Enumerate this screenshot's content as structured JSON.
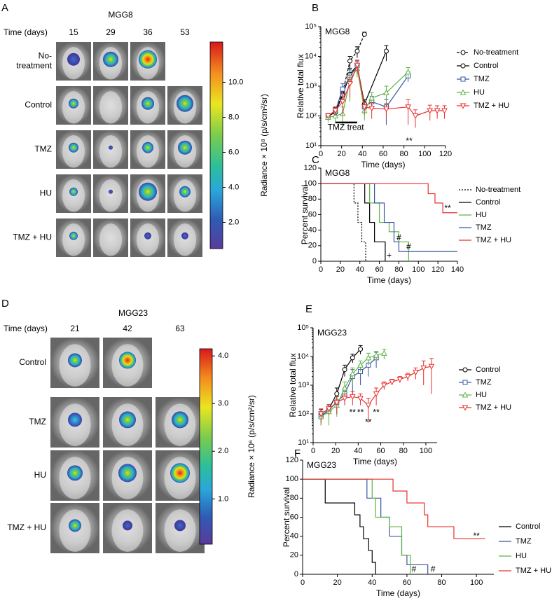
{
  "imaging": [
    {
      "panel": "A",
      "title": "MGG8",
      "time_label": "Time (days)",
      "times": [
        15,
        29,
        36,
        53
      ],
      "rows": [
        "No-treatment",
        "Control",
        "TMZ",
        "HU",
        "TMZ + HU"
      ],
      "colorbar": {
        "label": "Radiance × 10⁸ (p/s/cm²/sr)",
        "lim": [
          0.5,
          12.3
        ],
        "ticks": [
          {
            "value": 2,
            "label": "2.0"
          },
          {
            "value": 4,
            "label": "4.0"
          },
          {
            "value": 6,
            "label": "6.0"
          },
          {
            "value": 8,
            "label": "8.0"
          },
          {
            "value": 10,
            "label": "10.0"
          }
        ]
      }
    },
    {
      "panel": "D",
      "title": "MGG23",
      "time_label": "Time (days)",
      "times": [
        21,
        42,
        63
      ],
      "rows": [
        "Control",
        "TMZ",
        "HU",
        "TMZ + HU"
      ],
      "colorbar": {
        "label": "Radiance × 10⁶ (p/s/cm²/sr)",
        "lim": [
          0.05,
          4.15
        ],
        "ticks": [
          {
            "value": 1,
            "label": "1.0"
          },
          {
            "value": 2,
            "label": "2.0"
          },
          {
            "value": 3,
            "label": "3.0"
          },
          {
            "value": 4,
            "label": "4.0"
          }
        ]
      }
    }
  ],
  "chart_data": [
    {
      "type": "line",
      "panel": "B",
      "label": "MGG8",
      "x_label": "Time (days)",
      "y_label": "Relative total flux",
      "log_y": true,
      "xlim": [
        0,
        120
      ],
      "xticks": [
        0,
        20,
        40,
        60,
        80,
        100,
        120
      ],
      "ylim": [
        10,
        100000
      ],
      "yticks": [
        {
          "value": 10,
          "label": "10¹"
        },
        {
          "value": 100,
          "label": "10²"
        },
        {
          "value": 1000,
          "label": "10³"
        },
        {
          "value": 10000,
          "label": "10⁴"
        },
        {
          "value": 100000,
          "label": "10⁵"
        }
      ],
      "legend": "right",
      "annotations": [
        "TMZ treat",
        "**"
      ],
      "series": [
        {
          "name": "No-treatment",
          "color": "#000000",
          "marker": "circle",
          "dash": "dashed",
          "x": [
            7,
            14,
            21,
            28,
            35,
            42
          ],
          "values": [
            100,
            150,
            600,
            7000,
            15000,
            55000
          ],
          "errors": [
            20,
            40,
            300,
            3000,
            6000,
            10000
          ]
        },
        {
          "name": "Control",
          "color": "#000000",
          "marker": "circle",
          "x": [
            7,
            14,
            21,
            28,
            35,
            42,
            63
          ],
          "values": [
            100,
            130,
            500,
            2500,
            5000,
            250,
            15000
          ],
          "errors": [
            20,
            30,
            200,
            1500,
            2000,
            100,
            8000
          ]
        },
        {
          "name": "TMZ",
          "color": "#3a53a4",
          "marker": "square",
          "x": [
            7,
            14,
            21,
            28,
            35,
            42,
            49,
            63,
            84
          ],
          "values": [
            100,
            150,
            800,
            2000,
            5000,
            200,
            300,
            200,
            2200
          ],
          "errors": [
            20,
            50,
            400,
            1500,
            2000,
            100,
            150,
            150,
            800
          ]
        },
        {
          "name": "HU",
          "color": "#5cb545",
          "marker": "triangle",
          "x": [
            7,
            14,
            21,
            28,
            35,
            42,
            49,
            63,
            84
          ],
          "values": [
            90,
            100,
            120,
            1500,
            4000,
            150,
            400,
            600,
            3000
          ],
          "errors": [
            30,
            40,
            80,
            1200,
            2000,
            80,
            200,
            400,
            1200
          ]
        },
        {
          "name": "TMZ + HU",
          "color": "#e8312e",
          "marker": "triangle-down",
          "x": [
            7,
            14,
            21,
            28,
            35,
            42,
            49,
            63,
            84,
            91,
            105,
            112,
            119
          ],
          "values": [
            100,
            150,
            300,
            1200,
            5000,
            200,
            180,
            170,
            200,
            100,
            150,
            150,
            150
          ],
          "errors": [
            20,
            50,
            200,
            800,
            2500,
            80,
            100,
            90,
            150,
            60,
            80,
            70,
            70
          ]
        }
      ]
    },
    {
      "type": "line",
      "panel": "C",
      "label": "MGG8",
      "x_label": "Time (days)",
      "y_label": "Percent survival",
      "xlim": [
        0,
        140
      ],
      "xticks": [
        0,
        20,
        40,
        60,
        80,
        100,
        120,
        140
      ],
      "ylim": [
        0,
        120
      ],
      "yticks": [
        0,
        20,
        40,
        60,
        80,
        100,
        120
      ],
      "legend": "right",
      "annotations": [
        "**",
        "#",
        "#",
        "+"
      ],
      "series": [
        {
          "name": "No-treatment",
          "color": "#000000",
          "dash": "dotted",
          "x": [
            0,
            34,
            34,
            38,
            38,
            42,
            42,
            46,
            46
          ],
          "values": [
            100,
            100,
            75,
            75,
            50,
            50,
            25,
            25,
            0
          ]
        },
        {
          "name": "Control",
          "color": "#000000",
          "x": [
            0,
            45,
            45,
            50,
            50,
            55,
            55,
            66,
            66
          ],
          "values": [
            100,
            100,
            75,
            75,
            50,
            50,
            25,
            25,
            0
          ]
        },
        {
          "name": "HU",
          "color": "#5cb545",
          "x": [
            0,
            50,
            50,
            60,
            60,
            70,
            70,
            80,
            80,
            90,
            90
          ],
          "values": [
            100,
            100,
            75,
            75,
            50,
            50,
            38,
            38,
            25,
            25,
            0
          ]
        },
        {
          "name": "TMZ",
          "color": "#3a53a4",
          "x": [
            0,
            55,
            55,
            65,
            65,
            75,
            75,
            80,
            80,
            140
          ],
          "values": [
            100,
            100,
            75,
            75,
            50,
            50,
            25,
            25,
            12.5,
            12.5
          ]
        },
        {
          "name": "TMZ + HU",
          "color": "#e8312e",
          "x": [
            0,
            110,
            110,
            117,
            117,
            125,
            125,
            140
          ],
          "values": [
            100,
            100,
            87,
            87,
            75,
            75,
            62.5,
            62.5
          ]
        }
      ]
    },
    {
      "type": "line",
      "panel": "E",
      "label": "MGG23",
      "x_label": "Time (days)",
      "y_label": "Relative total flux",
      "log_y": true,
      "xlim": [
        0,
        110
      ],
      "xticks": [
        0,
        20,
        40,
        60,
        80,
        100
      ],
      "ylim": [
        10,
        100000
      ],
      "yticks": [
        {
          "value": 10,
          "label": "10¹"
        },
        {
          "value": 100,
          "label": "10²"
        },
        {
          "value": 1000,
          "label": "10³"
        },
        {
          "value": 10000,
          "label": "10⁴"
        },
        {
          "value": 100000,
          "label": "10⁵"
        }
      ],
      "legend": "right",
      "annotations": [
        "**",
        "**",
        "**",
        "**"
      ],
      "series": [
        {
          "name": "Control",
          "color": "#000000",
          "marker": "circle",
          "x": [
            7,
            14,
            21,
            28,
            35,
            42
          ],
          "values": [
            100,
            150,
            500,
            3500,
            9000,
            18000
          ],
          "errors": [
            40,
            60,
            300,
            1500,
            3000,
            6000
          ]
        },
        {
          "name": "TMZ",
          "color": "#3a53a4",
          "marker": "square",
          "x": [
            7,
            14,
            21,
            28,
            35,
            42,
            49,
            56
          ],
          "values": [
            80,
            140,
            250,
            500,
            2000,
            3000,
            5000,
            9000
          ],
          "errors": [
            40,
            60,
            150,
            300,
            1500,
            2000,
            3000,
            5000
          ]
        },
        {
          "name": "HU",
          "color": "#5cb545",
          "marker": "triangle",
          "x": [
            7,
            14,
            21,
            28,
            35,
            42,
            49,
            56,
            63
          ],
          "values": [
            80,
            120,
            200,
            800,
            2500,
            5000,
            9000,
            11000,
            13000
          ],
          "errors": [
            40,
            80,
            120,
            500,
            1500,
            2000,
            4000,
            4000,
            5000
          ]
        },
        {
          "name": "TMZ + HU",
          "color": "#e8312e",
          "marker": "triangle-down",
          "x": [
            7,
            14,
            21,
            28,
            35,
            42,
            49,
            56,
            63,
            70,
            77,
            84,
            91,
            98,
            105
          ],
          "values": [
            100,
            150,
            250,
            350,
            400,
            350,
            200,
            500,
            1000,
            1300,
            1600,
            2000,
            2800,
            4000,
            4500
          ],
          "errors": [
            50,
            60,
            150,
            150,
            200,
            150,
            150,
            300,
            300,
            300,
            400,
            600,
            1200,
            3000,
            4000
          ]
        }
      ]
    },
    {
      "type": "line",
      "panel": "F",
      "label": "MGG23",
      "x_label": "Time (days)",
      "y_label": "Percent survival",
      "xlim": [
        0,
        110
      ],
      "xticks": [
        0,
        20,
        40,
        60,
        80,
        100
      ],
      "ylim": [
        0,
        120
      ],
      "yticks": [
        0,
        20,
        40,
        60,
        80,
        100,
        120
      ],
      "legend": "right",
      "annotations": [
        "#",
        "#",
        "**"
      ],
      "series": [
        {
          "name": "Control",
          "color": "#000000",
          "x": [
            0,
            13,
            13,
            30,
            30,
            33,
            33,
            35,
            35,
            38,
            38,
            40,
            40,
            42,
            42
          ],
          "values": [
            100,
            100,
            75,
            75,
            62.5,
            62.5,
            50,
            50,
            37.5,
            37.5,
            25,
            25,
            12.5,
            12.5,
            0
          ]
        },
        {
          "name": "TMZ",
          "color": "#3a53a4",
          "x": [
            0,
            37,
            37,
            45,
            45,
            50,
            50,
            57,
            57,
            60,
            60,
            72,
            72
          ],
          "values": [
            100,
            100,
            80,
            80,
            60,
            60,
            40,
            40,
            20,
            20,
            10,
            10,
            0
          ]
        },
        {
          "name": "HU",
          "color": "#5cb545",
          "x": [
            0,
            40,
            40,
            42,
            42,
            50,
            50,
            57,
            57,
            62,
            62
          ],
          "values": [
            100,
            100,
            80,
            80,
            60,
            60,
            50,
            50,
            20,
            20,
            0
          ]
        },
        {
          "name": "TMZ + HU",
          "color": "#e8312e",
          "x": [
            0,
            52,
            52,
            60,
            60,
            70,
            70,
            72,
            72,
            87,
            87,
            105
          ],
          "values": [
            100,
            100,
            87.5,
            87.5,
            75,
            75,
            62.5,
            62.5,
            50,
            50,
            37.5,
            37.5
          ]
        }
      ]
    }
  ]
}
